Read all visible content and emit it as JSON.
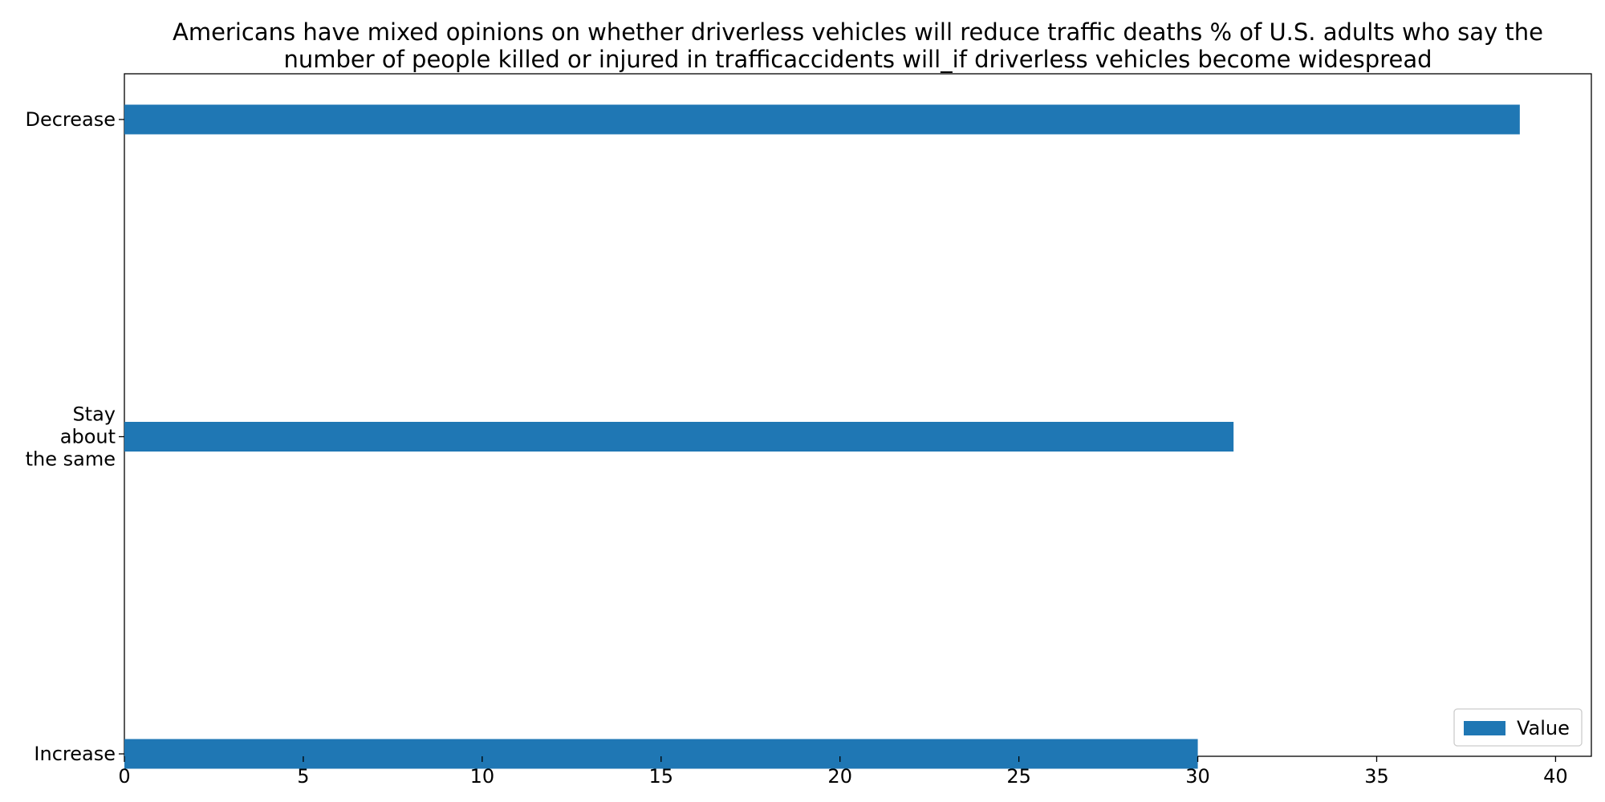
{
  "chart_data": {
    "type": "bar",
    "orientation": "horizontal",
    "title_lines": [
      "Americans have mixed opinions on whether driverless vehicles will reduce traffic deaths % of U.S. adults who say the",
      "number of people killed or injured in trafficaccidents will_if driverless vehicles become widespread"
    ],
    "categories": [
      "Decrease",
      "Stay about the same",
      "Increase"
    ],
    "category_label_lines": [
      [
        "Decrease"
      ],
      [
        "Stay",
        "about",
        "the same"
      ],
      [
        "Increase"
      ]
    ],
    "series": [
      {
        "name": "Value",
        "values": [
          39,
          31,
          30
        ],
        "color": "#1f77b4"
      }
    ],
    "xlabel": "",
    "ylabel": "",
    "xlim": [
      0,
      41
    ],
    "xticks": [
      0,
      5,
      10,
      15,
      20,
      25,
      30,
      35,
      40
    ],
    "grid": false,
    "legend_position": "lower-right"
  }
}
